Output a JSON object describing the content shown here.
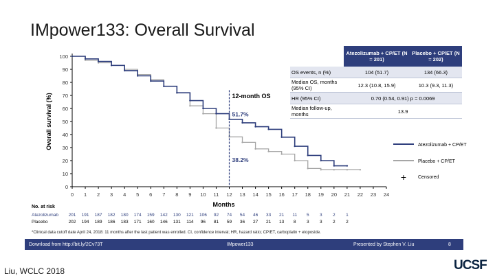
{
  "slide": {
    "title": "IMpower133: Overall Survival",
    "credit": "Liu, WCLC 2018",
    "logo": "UCSF",
    "footnote": "*Clinical data cutoff date April 24, 2018: 11 months after the last patient was enrolled. CI, confidence interval; HR, hazard ratio; CP/ET, carboplatin + etoposide.",
    "footer": {
      "left": "Download from http://bit.ly/2Cv73T",
      "center": "IMpower133",
      "right": "Presented by Stephen V. Liu",
      "page": "8"
    }
  },
  "table": {
    "headers": [
      "",
      "Atezolizumab + CP/ET (N = 201)",
      "Placebo + CP/ET (N = 202)"
    ],
    "rows": [
      {
        "label": "OS events, n (%)",
        "a": "104 (51.7)",
        "b": "134 (66.3)"
      },
      {
        "label": "Median OS, months (95% CI)",
        "a": "12.3 (10.8, 15.9)",
        "b": "10.3 (9.3, 11.3)"
      },
      {
        "label": "HR (95% CI)",
        "ab": "0.70 (0.54, 0.91) p = 0.0069"
      },
      {
        "label": "Median follow-up, months",
        "ab": "13.9"
      }
    ]
  },
  "colors": {
    "atezo": "#2e3e7c",
    "placebo": "#a6a6a6",
    "footer": "#2e3e7c",
    "median": "#2e3e7c"
  },
  "chart_data": {
    "type": "line",
    "title": "",
    "xlabel": "Months",
    "ylabel": "Overall survival (%)",
    "xlim": [
      0,
      24
    ],
    "ylim": [
      0,
      100
    ],
    "x_ticks": [
      0,
      1,
      2,
      3,
      4,
      5,
      6,
      7,
      8,
      9,
      10,
      11,
      12,
      13,
      14,
      15,
      16,
      17,
      18,
      19,
      20,
      21,
      22,
      23,
      24
    ],
    "y_ticks": [
      0,
      10,
      20,
      30,
      40,
      50,
      60,
      70,
      80,
      90,
      100
    ],
    "annotations": [
      {
        "text": "12-month OS",
        "x": 12,
        "y": 70
      },
      {
        "text": "51.7%",
        "x": 12,
        "y": 56
      },
      {
        "text": "38.2%",
        "x": 12,
        "y": 21
      }
    ],
    "legend": {
      "placement": "right",
      "entries": [
        "Atezolizumab + CP/ET",
        "Placebo + CP/ET",
        "Censored"
      ]
    },
    "series": [
      {
        "name": "Atezolizumab + CP/ET",
        "x": [
          0,
          1,
          2,
          3,
          4,
          5,
          6,
          7,
          8,
          9,
          10,
          11,
          12,
          13,
          14,
          15,
          16,
          17,
          18,
          19,
          20,
          21
        ],
        "y": [
          100,
          98,
          96,
          93,
          89,
          85,
          81,
          77,
          72,
          66,
          60,
          56,
          51.7,
          49,
          46,
          44,
          38,
          31,
          24,
          20,
          16,
          16
        ]
      },
      {
        "name": "Placebo + CP/ET",
        "x": [
          0,
          1,
          2,
          3,
          4,
          5,
          6,
          7,
          8,
          9,
          10,
          11,
          12,
          13,
          14,
          15,
          16,
          17,
          18,
          19,
          20,
          21,
          22
        ],
        "y": [
          100,
          97,
          95,
          93,
          90,
          86,
          82,
          77,
          72,
          62,
          56,
          45,
          38.2,
          34,
          29,
          27,
          25,
          20,
          14,
          13,
          13,
          13,
          13
        ]
      }
    ],
    "risk_table": {
      "label": "No. at risk",
      "rows": [
        {
          "name": "Atezolizumab",
          "values": [
            "201",
            "191",
            "187",
            "182",
            "180",
            "174",
            "159",
            "142",
            "130",
            "121",
            "106",
            "92",
            "74",
            "54",
            "46",
            "33",
            "21",
            "11",
            "5",
            "3",
            "2",
            "1"
          ]
        },
        {
          "name": "Placebo",
          "values": [
            "202",
            "194",
            "189",
            "186",
            "183",
            "171",
            "160",
            "146",
            "131",
            "114",
            "96",
            "81",
            "59",
            "36",
            "27",
            "21",
            "13",
            "8",
            "3",
            "3",
            "2",
            "2"
          ]
        }
      ]
    }
  }
}
